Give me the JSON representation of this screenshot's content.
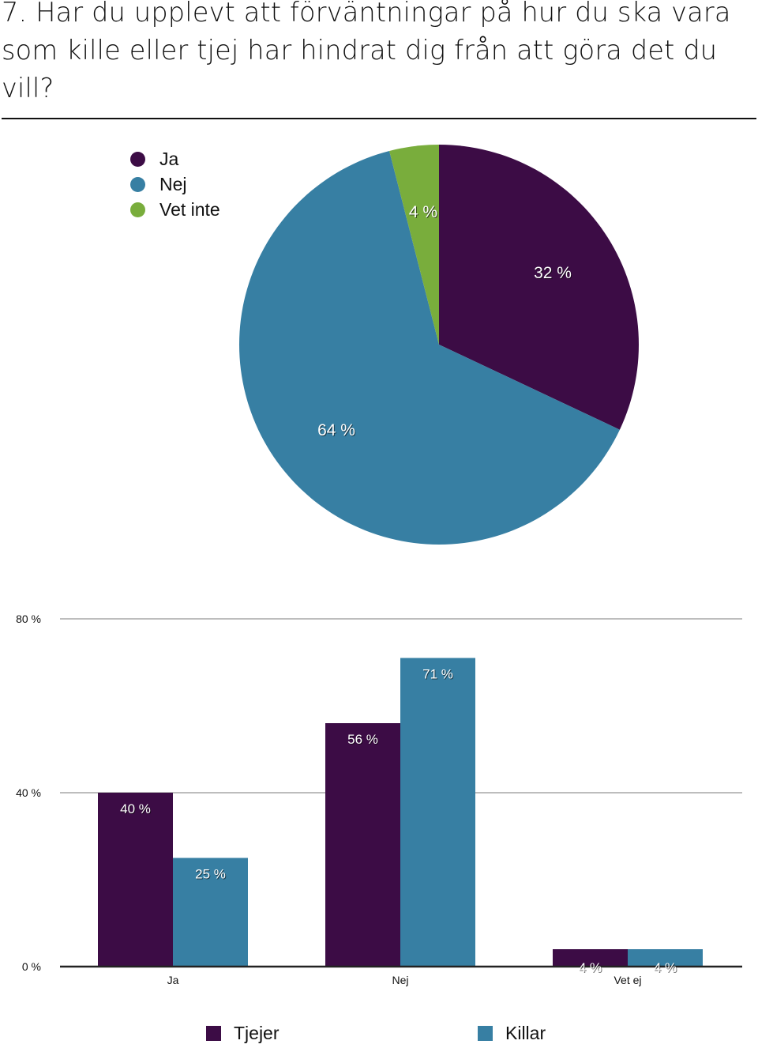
{
  "title": "7. Har du upplevt att förväntningar på hur du ska vara som kille eller tjej har hindrat dig från att göra det du vill?",
  "colors": {
    "ja": "#3c0c45",
    "nej": "#377fa3",
    "vet_inte": "#79ad3c",
    "grid": "#bdbdbd",
    "axis": "#222222"
  },
  "chart_data": [
    {
      "type": "pie",
      "legend": [
        "Ja",
        "Nej",
        "Vet inte"
      ],
      "slices": [
        {
          "name": "Ja",
          "value": 32,
          "label": "32 %"
        },
        {
          "name": "Nej",
          "value": 64,
          "label": "64 %"
        },
        {
          "name": "Vet inte",
          "value": 4,
          "label": "4 %"
        }
      ]
    },
    {
      "type": "bar",
      "categories": [
        "Ja",
        "Nej",
        "Vet ej"
      ],
      "series": [
        {
          "name": "Tjejer",
          "values": [
            40,
            56,
            4
          ],
          "labels": [
            "40 %",
            "56 %",
            "4 %"
          ]
        },
        {
          "name": "Killar",
          "values": [
            25,
            71,
            4
          ],
          "labels": [
            "25 %",
            "71 %",
            "4 %"
          ]
        }
      ],
      "ylim": [
        0,
        80
      ],
      "yticks": [
        "0 %",
        "40 %",
        "80 %"
      ],
      "grid": true,
      "legend_placement": "bottom"
    }
  ]
}
